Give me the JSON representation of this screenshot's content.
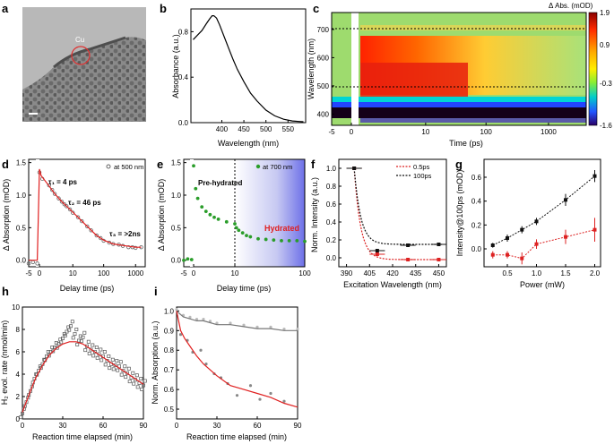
{
  "chart_data": [
    {
      "panel": "a",
      "type": "image",
      "annotation": "Cu"
    },
    {
      "panel": "b",
      "type": "line",
      "xlabel": "Wavelength (nm)",
      "ylabel": "Absorbance (a.u.)",
      "xlim": [
        330,
        590
      ],
      "ylim": [
        0,
        1.0
      ],
      "xticks": [
        "400",
        "450",
        "500",
        "550"
      ],
      "yticks": [
        "0.0",
        "0.4",
        "0.8"
      ],
      "x": [
        335,
        345,
        355,
        365,
        372,
        378,
        382,
        388,
        395,
        405,
        415,
        425,
        435,
        450,
        465,
        480,
        500,
        520,
        540,
        560,
        575,
        585
      ],
      "y": [
        0.73,
        0.77,
        0.81,
        0.87,
        0.91,
        0.94,
        0.94,
        0.92,
        0.86,
        0.76,
        0.66,
        0.56,
        0.47,
        0.36,
        0.26,
        0.19,
        0.11,
        0.06,
        0.03,
        0.015,
        0.01,
        0.008
      ]
    },
    {
      "panel": "c",
      "type": "heatmap",
      "title": "Δ Abs. (mOD)",
      "xlabel": "Time (ps)",
      "ylabel": "Wavelength (nm)",
      "xticks": [
        "-5",
        "0",
        "10",
        "100",
        "1000"
      ],
      "yticks": [
        "400",
        "500",
        "600",
        "700"
      ],
      "colorbar_ticks": [
        "1.9",
        "0.9",
        "-0.3",
        "-1.6"
      ],
      "colorbar_range": [
        -1.6,
        1.9
      ],
      "marked_wavelengths": [
        500,
        700
      ]
    },
    {
      "panel": "d",
      "type": "scatter",
      "xlabel": "Delay time (ps)",
      "ylabel": "Δ Absorption (mOD)",
      "xticks": [
        "-5",
        "0",
        "10",
        "100",
        "1000"
      ],
      "yticks": [
        "0.0",
        "0.5",
        "1.0",
        "1.5"
      ],
      "ylim": [
        -0.1,
        1.55
      ],
      "legend": "at 500 nm",
      "annotations": [
        "τ₁ = 4 ps",
        "τ₂ = 46 ps",
        "τ₃ = >2ns"
      ],
      "series": [
        {
          "name": "data",
          "x": [
            -5,
            -3,
            -1,
            0,
            0.5,
            1,
            1.5,
            2,
            3,
            4,
            5,
            6,
            8,
            10,
            15,
            20,
            30,
            40,
            60,
            80,
            100,
            150,
            200,
            300,
            400,
            600,
            800,
            1000,
            1500
          ],
          "y": [
            -0.05,
            -0.03,
            -0.05,
            1.35,
            1.25,
            1.15,
            1.08,
            1.02,
            0.95,
            0.9,
            0.86,
            0.83,
            0.78,
            0.73,
            0.66,
            0.6,
            0.52,
            0.46,
            0.38,
            0.34,
            0.3,
            0.27,
            0.25,
            0.24,
            0.22,
            0.2,
            0.2,
            0.19,
            0.2
          ]
        },
        {
          "name": "fit",
          "x": [
            -5,
            -1,
            0,
            0.3,
            1,
            2,
            4,
            8,
            15,
            30,
            60,
            100,
            200,
            500,
            1000,
            1500
          ],
          "y": [
            0,
            0,
            1.4,
            1.3,
            1.14,
            1.02,
            0.9,
            0.78,
            0.66,
            0.52,
            0.38,
            0.31,
            0.25,
            0.22,
            0.2,
            0.2
          ]
        }
      ]
    },
    {
      "panel": "e",
      "type": "scatter",
      "xlabel": "Delay time (ps)",
      "ylabel": "Δ Absorption (mOD)",
      "xticks": [
        "-5",
        "0",
        "10",
        "100"
      ],
      "yticks": [
        "0.0",
        "0.5",
        "1.0",
        "1.5"
      ],
      "ylim": [
        -0.1,
        1.55
      ],
      "legend": "at 700 nm",
      "region_labels": [
        "Pre-hydrated",
        "Hydrated"
      ],
      "divider_at": 10,
      "x": [
        -5,
        -3,
        -1,
        0,
        0.5,
        1,
        2,
        3,
        4,
        5,
        6,
        8,
        10,
        12,
        15,
        20,
        25,
        30,
        40,
        50,
        60,
        70,
        80,
        90,
        100
      ],
      "y": [
        0.0,
        0.02,
        0.01,
        1.45,
        1.1,
        0.95,
        0.82,
        0.75,
        0.7,
        0.66,
        0.63,
        0.59,
        0.56,
        0.5,
        0.46,
        0.42,
        0.38,
        0.36,
        0.33,
        0.32,
        0.31,
        0.3,
        0.3,
        0.3,
        0.29
      ]
    },
    {
      "panel": "f",
      "type": "line",
      "xlabel": "Excitation Wavelength (nm)",
      "ylabel": "Norm. Intensity (a.u.)",
      "xlim": [
        385,
        455
      ],
      "ylim": [
        -0.1,
        1.1
      ],
      "xticks": [
        "390",
        "405",
        "420",
        "435",
        "450"
      ],
      "yticks": [
        "0.0",
        "0.2",
        "0.4",
        "0.6",
        "0.8",
        "1.0"
      ],
      "series": [
        {
          "name": "0.5ps",
          "color": "#dd2222",
          "x": [
            395,
            410,
            430,
            450
          ],
          "y": [
            1.0,
            0.04,
            -0.02,
            -0.02
          ],
          "xerr": [
            5,
            5,
            5,
            5
          ]
        },
        {
          "name": "100ps",
          "color": "#111111",
          "x": [
            395,
            410,
            430,
            450
          ],
          "y": [
            1.0,
            0.08,
            0.14,
            0.15
          ],
          "xerr": [
            5,
            5,
            5,
            5
          ]
        }
      ]
    },
    {
      "panel": "g",
      "type": "line",
      "xlabel": "Power (mW)",
      "ylabel": "Intensity@100ps (mOD)",
      "xlim": [
        0.1,
        2.1
      ],
      "ylim": [
        -0.15,
        0.75
      ],
      "xticks": [
        "0.5",
        "1.0",
        "1.5",
        "2.0"
      ],
      "yticks": [
        "0.0",
        "0.2",
        "0.4",
        "0.6"
      ],
      "series": [
        {
          "name": "black",
          "color": "#111111",
          "x": [
            0.25,
            0.5,
            0.75,
            1.0,
            1.5,
            2.0
          ],
          "y": [
            0.03,
            0.09,
            0.16,
            0.23,
            0.41,
            0.61
          ],
          "yerr": [
            0.02,
            0.03,
            0.03,
            0.03,
            0.05,
            0.05
          ]
        },
        {
          "name": "red",
          "color": "#dd2222",
          "x": [
            0.25,
            0.5,
            0.75,
            1.0,
            1.5,
            2.0
          ],
          "y": [
            -0.05,
            -0.05,
            -0.08,
            0.04,
            0.1,
            0.16
          ],
          "yerr": [
            0.03,
            0.03,
            0.05,
            0.04,
            0.06,
            0.1
          ]
        }
      ]
    },
    {
      "panel": "h",
      "type": "scatter",
      "xlabel": "Reaction time elapsed (min)",
      "ylabel": "H₂ evol. rate (nmol/min)",
      "xlim": [
        0,
        90
      ],
      "ylim": [
        0,
        10
      ],
      "xticks": [
        "0",
        "30",
        "60",
        "90"
      ],
      "yticks": [
        "0",
        "2",
        "4",
        "6",
        "8",
        "10"
      ],
      "series": [
        {
          "name": "data",
          "x": [
            0,
            3,
            6,
            9,
            12,
            15,
            18,
            21,
            24,
            27,
            30,
            33,
            36,
            39,
            42,
            45,
            48,
            51,
            54,
            57,
            60,
            63,
            66,
            69,
            72,
            75,
            78,
            81,
            84,
            87,
            90
          ],
          "y": [
            0.5,
            1.5,
            2.5,
            3.6,
            4.3,
            4.9,
            5.6,
            6.0,
            6.4,
            6.7,
            7.2,
            7.8,
            8.3,
            7.6,
            7.0,
            7.3,
            6.5,
            6.2,
            6.0,
            5.8,
            5.6,
            5.2,
            4.9,
            4.8,
            4.7,
            4.3,
            4.1,
            3.7,
            3.5,
            3.2,
            3.0
          ]
        },
        {
          "name": "fit",
          "x": [
            0,
            5,
            10,
            15,
            20,
            25,
            30,
            35,
            40,
            45,
            50,
            55,
            60,
            65,
            70,
            75,
            80,
            85,
            90
          ],
          "y": [
            0.6,
            2.2,
            3.7,
            4.8,
            5.7,
            6.3,
            6.7,
            6.9,
            6.9,
            6.7,
            6.3,
            5.9,
            5.5,
            5.1,
            4.7,
            4.3,
            3.9,
            3.5,
            3.1
          ]
        }
      ]
    },
    {
      "panel": "i",
      "type": "scatter",
      "xlabel": "Reaction time elapsed (min)",
      "ylabel": "Norm. Absorption (a.u.)",
      "xlim": [
        0,
        90
      ],
      "ylim": [
        0.45,
        1.02
      ],
      "xticks": [
        "0",
        "30",
        "60",
        "90"
      ],
      "yticks": [
        "0.5",
        "0.6",
        "0.7",
        "0.8",
        "0.9",
        "1.0"
      ],
      "series": [
        {
          "name": "gray",
          "x": [
            0,
            5,
            10,
            15,
            20,
            25,
            30,
            40,
            50,
            60,
            70,
            80,
            90
          ],
          "y": [
            1.0,
            0.97,
            0.96,
            0.95,
            0.95,
            0.94,
            0.93,
            0.93,
            0.92,
            0.91,
            0.91,
            0.9,
            0.9
          ]
        },
        {
          "name": "red",
          "x": [
            0,
            3,
            6,
            10,
            15,
            20,
            25,
            30,
            40,
            50,
            60,
            70,
            80,
            90
          ],
          "y": [
            1.0,
            0.9,
            0.86,
            0.82,
            0.77,
            0.73,
            0.7,
            0.67,
            0.62,
            0.6,
            0.58,
            0.56,
            0.53,
            0.51
          ]
        },
        {
          "name": "red-pts",
          "x": [
            3,
            8,
            12,
            18,
            22,
            28,
            33,
            38,
            45,
            55,
            62,
            70,
            80
          ],
          "y": [
            0.88,
            0.85,
            0.79,
            0.8,
            0.73,
            0.68,
            0.66,
            0.63,
            0.57,
            0.62,
            0.55,
            0.58,
            0.54
          ]
        }
      ]
    }
  ]
}
